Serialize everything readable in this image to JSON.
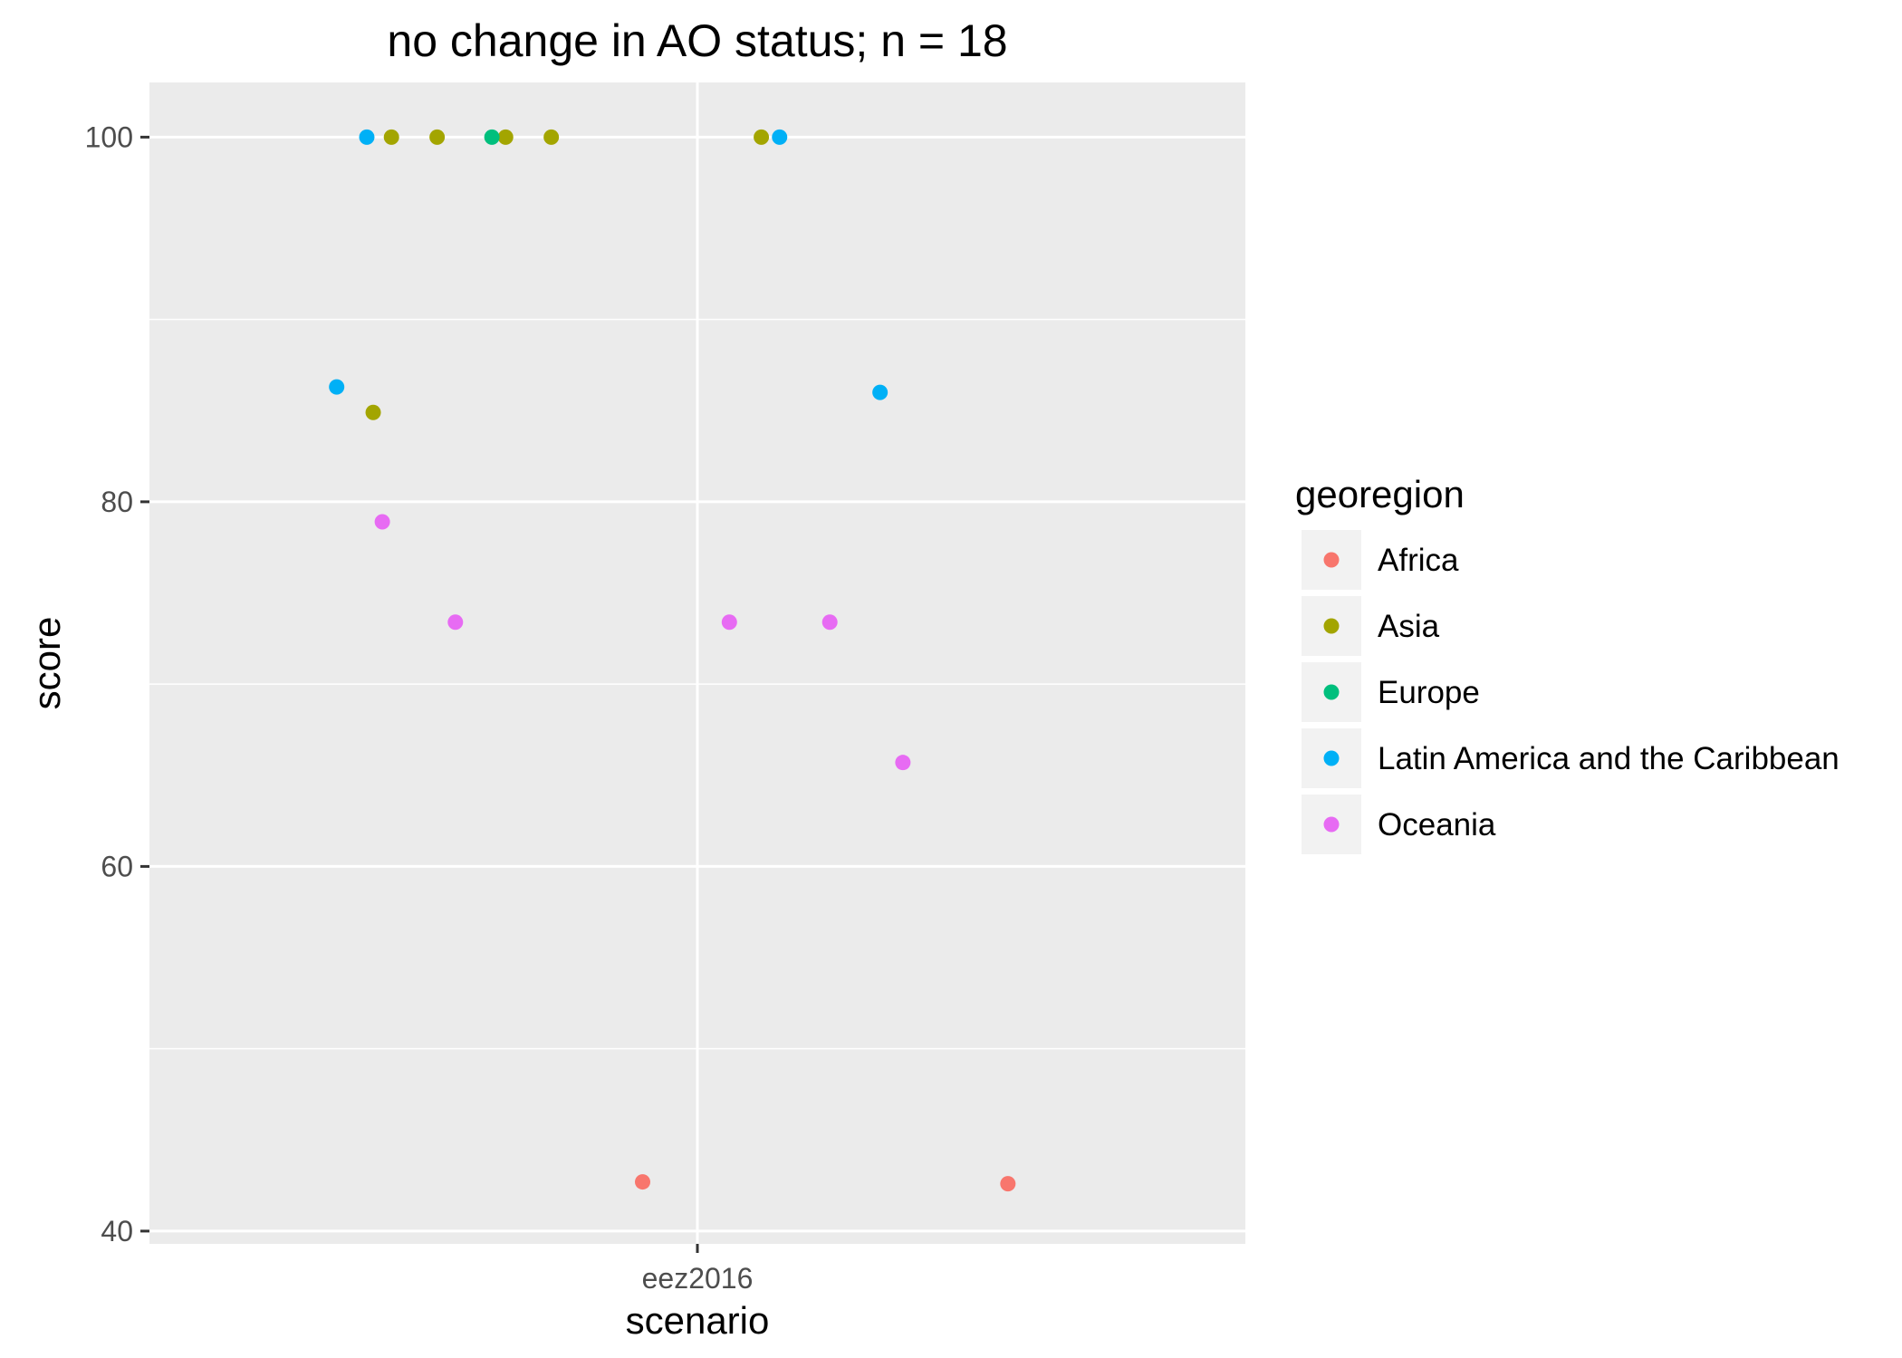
{
  "chart_data": {
    "type": "scatter",
    "title": "no change in AO status; n = 18",
    "xlabel": "scenario",
    "ylabel": "score",
    "categories": [
      "eez2016"
    ],
    "ylim": [
      39.3,
      103
    ],
    "yticks": [
      40,
      60,
      80,
      100
    ],
    "grid": true,
    "legend": {
      "title": "georegion",
      "position": "right",
      "items": [
        {
          "name": "Africa",
          "color": "#F8766D"
        },
        {
          "name": "Asia",
          "color": "#A3A500"
        },
        {
          "name": "Europe",
          "color": "#00BF7D"
        },
        {
          "name": "Latin America and the Caribbean",
          "color": "#00B0F6"
        },
        {
          "name": "Oceania",
          "color": "#E76BF3"
        }
      ]
    },
    "series": [
      {
        "name": "Africa",
        "color": "#F8766D",
        "points": [
          {
            "x": -0.06,
            "y": 42.7
          },
          {
            "x": 0.34,
            "y": 42.6
          }
        ]
      },
      {
        "name": "Asia",
        "color": "#A3A500",
        "points": [
          {
            "x": -0.335,
            "y": 100
          },
          {
            "x": -0.285,
            "y": 100
          },
          {
            "x": -0.21,
            "y": 100
          },
          {
            "x": -0.16,
            "y": 100
          },
          {
            "x": 0.07,
            "y": 100
          },
          {
            "x": -0.355,
            "y": 84.9
          }
        ]
      },
      {
        "name": "Europe",
        "color": "#00BF7D",
        "points": [
          {
            "x": -0.225,
            "y": 100
          }
        ]
      },
      {
        "name": "Latin America and the Caribbean",
        "color": "#00B0F6",
        "points": [
          {
            "x": -0.362,
            "y": 100
          },
          {
            "x": 0.09,
            "y": 100
          },
          {
            "x": -0.395,
            "y": 86.3
          },
          {
            "x": 0.2,
            "y": 86
          }
        ]
      },
      {
        "name": "Oceania",
        "color": "#E76BF3",
        "points": [
          {
            "x": -0.345,
            "y": 78.9
          },
          {
            "x": -0.265,
            "y": 73.4
          },
          {
            "x": 0.035,
            "y": 73.4
          },
          {
            "x": 0.145,
            "y": 73.4
          },
          {
            "x": 0.225,
            "y": 65.7
          }
        ]
      }
    ]
  }
}
